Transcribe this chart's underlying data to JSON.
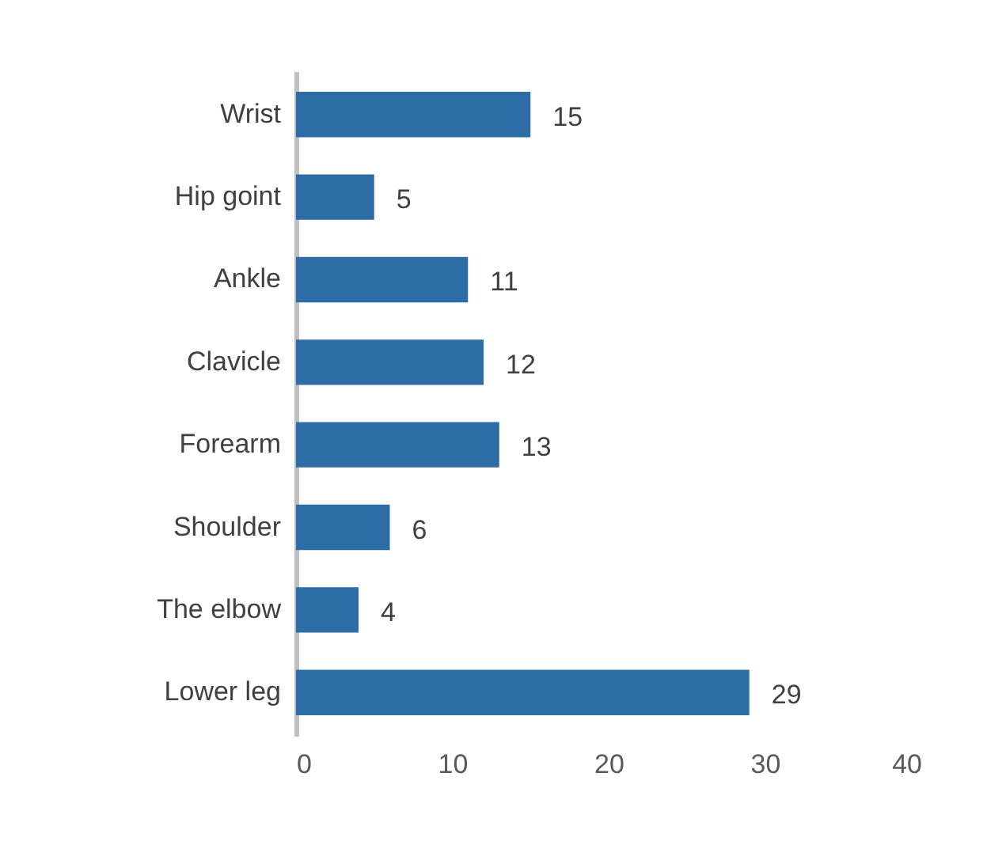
{
  "chart_data": {
    "type": "bar",
    "orientation": "horizontal",
    "categories": [
      "Wrist",
      "Hip goint",
      "Ankle",
      "Clavicle",
      "Forearm",
      "Shoulder",
      "The elbow",
      "Lower leg"
    ],
    "values": [
      15,
      5,
      11,
      12,
      13,
      6,
      4,
      29
    ],
    "color": "#2e6ca5",
    "xlim": [
      0,
      40
    ],
    "xticks": [
      0,
      10,
      20,
      30,
      40
    ],
    "data_labels": true
  }
}
